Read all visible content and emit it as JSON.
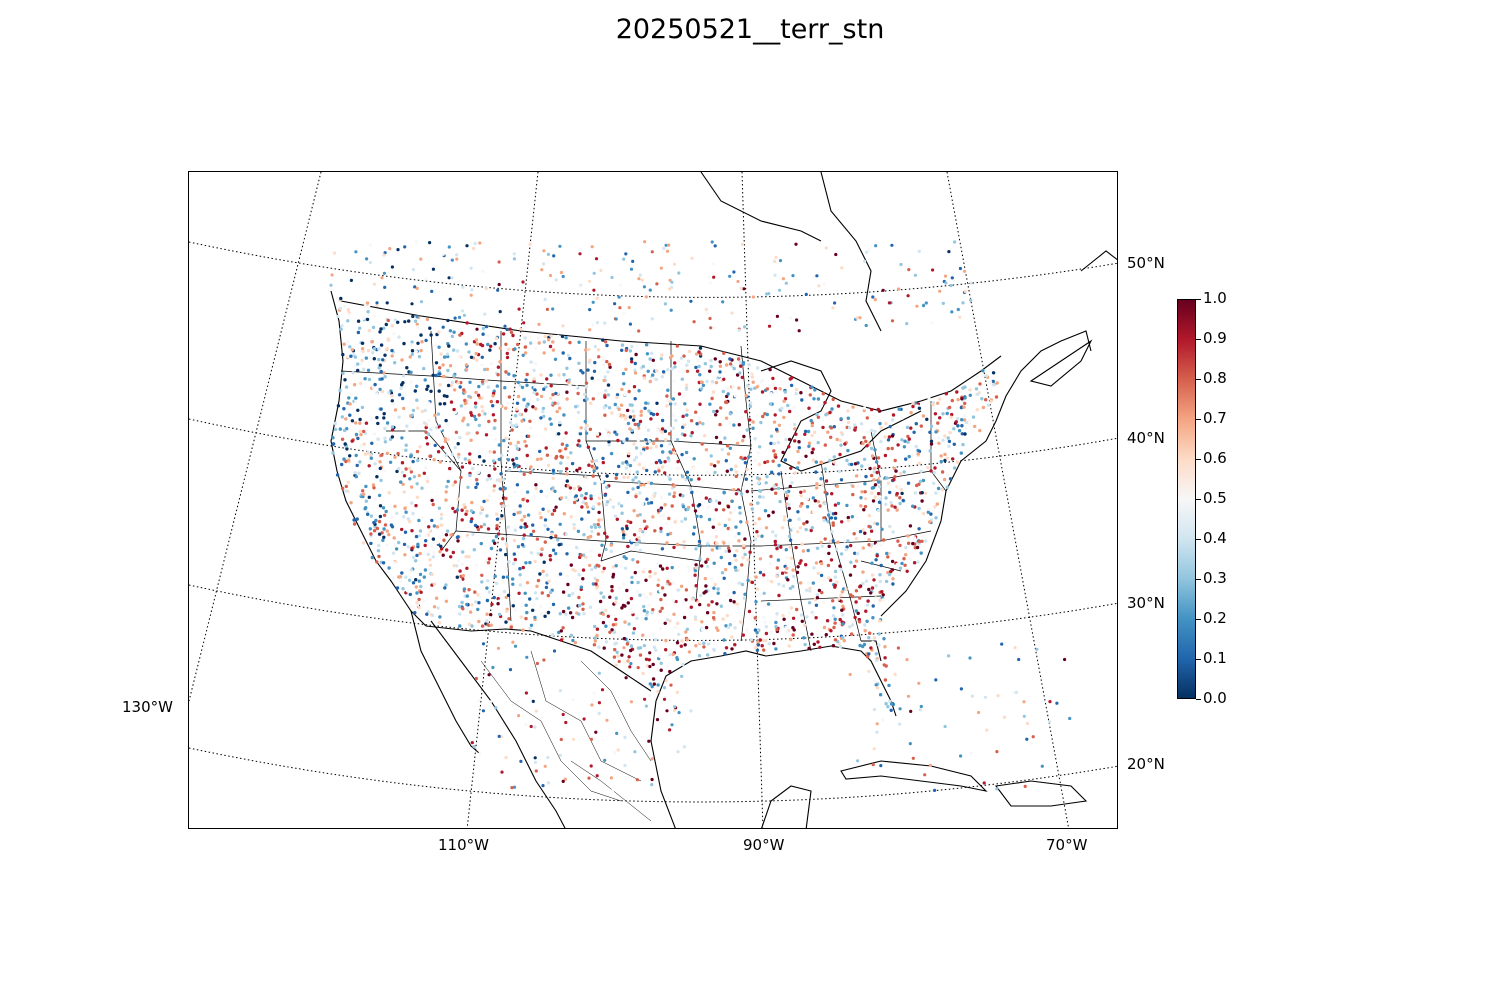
{
  "title": "20250521__terr_stn",
  "map": {
    "projection": "lambert-conformal",
    "parallel_labels": [
      "50°N",
      "40°N",
      "30°N",
      "20°N"
    ],
    "meridian_labels": [
      "110°W",
      "90°W",
      "70°W"
    ],
    "left_label": "130°W",
    "point_cloud": "station points colored by value over the contiguous US, southern Canada, northern Mexico and Caribbean"
  },
  "colorbar": {
    "colormap": "RdBu_r",
    "colors": [
      "#053061",
      "#2166ac",
      "#4393c3",
      "#92c5de",
      "#d1e5f0",
      "#f7f7f7",
      "#fddbc7",
      "#f4a582",
      "#d6604d",
      "#b2182b",
      "#67001f"
    ],
    "ticks": [
      "0.0",
      "0.1",
      "0.2",
      "0.3",
      "0.4",
      "0.5",
      "0.6",
      "0.7",
      "0.8",
      "0.9",
      "1.0"
    ],
    "range": [
      0,
      1
    ]
  }
}
